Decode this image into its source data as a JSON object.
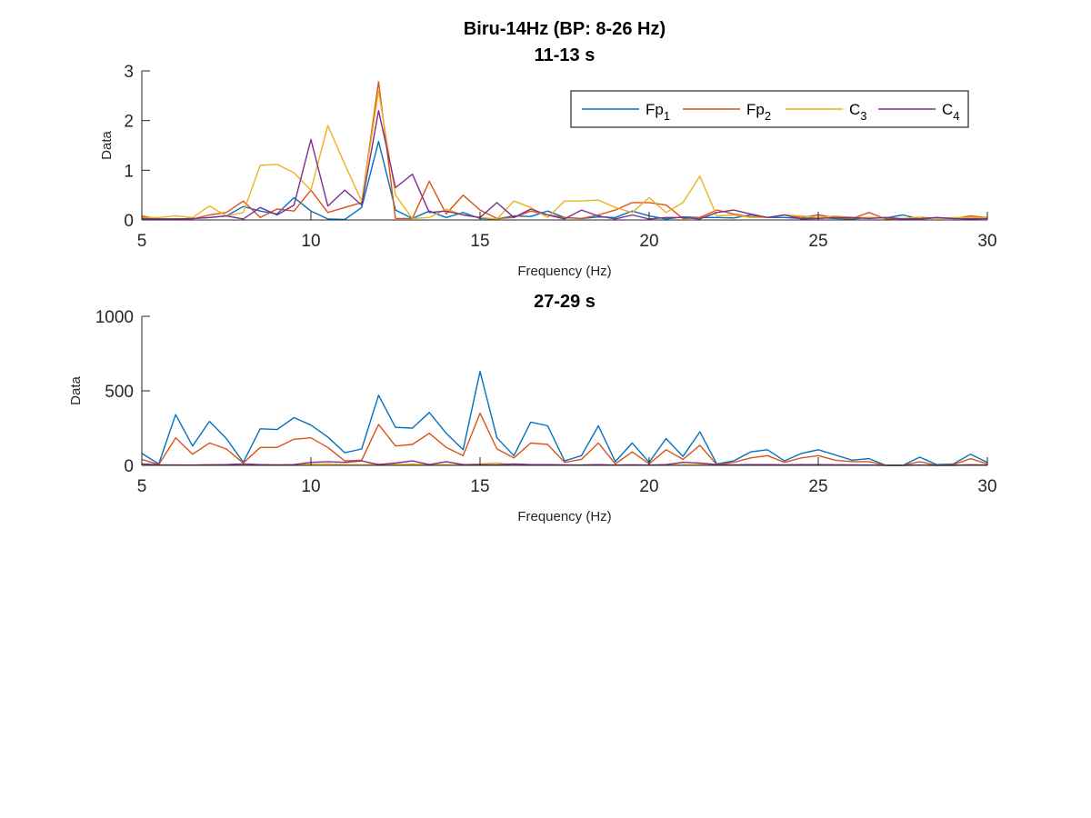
{
  "figure": {
    "suptitle": "Biru-14Hz (BP: 8-26 Hz)"
  },
  "legend": {
    "position": "top-right",
    "entries": [
      {
        "base": "Fp",
        "sub": "1",
        "color": "#0072BD"
      },
      {
        "base": "Fp",
        "sub": "2",
        "color": "#D95319"
      },
      {
        "base": "C",
        "sub": "3",
        "color": "#EDB120"
      },
      {
        "base": "C",
        "sub": "4",
        "color": "#7E2F8E"
      }
    ]
  },
  "chart_data": [
    {
      "type": "line",
      "title": "11-13 s",
      "xlabel": "Frequency (Hz)",
      "ylabel": "Data",
      "xlim": [
        5,
        30
      ],
      "ylim": [
        0,
        3
      ],
      "xticks": [
        5,
        10,
        15,
        20,
        25,
        30
      ],
      "yticks": [
        0,
        1,
        2,
        3
      ],
      "grid": false,
      "x": [
        5,
        5.5,
        6,
        6.5,
        7,
        7.5,
        8,
        8.5,
        9,
        9.5,
        10,
        10.5,
        11,
        11.5,
        12,
        12.5,
        13,
        13.5,
        14,
        14.5,
        15,
        15.5,
        16,
        16.5,
        17,
        17.5,
        18,
        18.5,
        19,
        19.5,
        20,
        20.5,
        21,
        21.5,
        22,
        22.5,
        23,
        23.5,
        24,
        24.5,
        25,
        25.5,
        26,
        26.5,
        27,
        27.5,
        28,
        28.5,
        29,
        29.5,
        30
      ],
      "series": [
        {
          "name": "Fp1",
          "color": "#0072BD",
          "values": [
            0.02,
            0.02,
            0.02,
            0.03,
            0.05,
            0.08,
            0.27,
            0.18,
            0.12,
            0.45,
            0.18,
            0.02,
            0.01,
            0.25,
            1.58,
            0.2,
            0.03,
            0.18,
            0.05,
            0.15,
            0.03,
            0.02,
            0.08,
            0.07,
            0.18,
            0.05,
            0.03,
            0.06,
            0.05,
            0.18,
            0.08,
            0.02,
            0.06,
            0.05,
            0.05,
            0.04,
            0.1,
            0.05,
            0.05,
            0.03,
            0.05,
            0.03,
            0.02,
            0.05,
            0.04,
            0.1,
            0.02,
            0.04,
            0.03,
            0.04,
            0.03
          ]
        },
        {
          "name": "Fp2",
          "color": "#D95319",
          "values": [
            0.08,
            0.02,
            0.02,
            0.02,
            0.1,
            0.15,
            0.38,
            0.05,
            0.22,
            0.18,
            0.6,
            0.15,
            0.25,
            0.35,
            2.78,
            0.03,
            0.03,
            0.78,
            0.12,
            0.5,
            0.2,
            0.03,
            0.05,
            0.18,
            0.1,
            0.05,
            0.03,
            0.1,
            0.2,
            0.35,
            0.35,
            0.3,
            0.03,
            0.05,
            0.2,
            0.12,
            0.06,
            0.05,
            0.1,
            0.05,
            0.1,
            0.05,
            0.03,
            0.15,
            0.02,
            0.03,
            0.02,
            0.05,
            0.03,
            0.08,
            0.05
          ]
        },
        {
          "name": "C3",
          "color": "#EDB120",
          "values": [
            0.05,
            0.05,
            0.08,
            0.05,
            0.28,
            0.08,
            0.15,
            1.1,
            1.12,
            0.95,
            0.6,
            1.9,
            1.12,
            0.38,
            2.6,
            0.5,
            0.03,
            0.05,
            0.22,
            0.1,
            0.05,
            0.02,
            0.38,
            0.25,
            0.05,
            0.38,
            0.38,
            0.4,
            0.25,
            0.15,
            0.45,
            0.15,
            0.35,
            0.88,
            0.08,
            0.1,
            0.05,
            0.05,
            0.1,
            0.08,
            0.05,
            0.08,
            0.05,
            0.05,
            0.05,
            0.03,
            0.06,
            0.03,
            0.05,
            0.05,
            0.05
          ]
        },
        {
          "name": "C4",
          "color": "#7E2F8E",
          "values": [
            0.03,
            0.02,
            0.02,
            0.03,
            0.05,
            0.08,
            0.02,
            0.25,
            0.1,
            0.3,
            1.62,
            0.28,
            0.6,
            0.3,
            2.2,
            0.65,
            0.92,
            0.15,
            0.18,
            0.1,
            0.05,
            0.35,
            0.05,
            0.22,
            0.1,
            0.02,
            0.2,
            0.08,
            0.02,
            0.1,
            0.02,
            0.05,
            0.05,
            0.02,
            0.15,
            0.2,
            0.12,
            0.05,
            0.1,
            0.02,
            0.03,
            0.05,
            0.05,
            0.03,
            0.05,
            0.02,
            0.03,
            0.05,
            0.03,
            0.02,
            0.03
          ]
        }
      ]
    },
    {
      "type": "line",
      "title": "27-29 s",
      "xlabel": "Frequency (Hz)",
      "ylabel": "Data",
      "xlim": [
        5,
        30
      ],
      "ylim": [
        0,
        1000
      ],
      "xticks": [
        5,
        10,
        15,
        20,
        25,
        30
      ],
      "yticks": [
        0,
        500,
        1000
      ],
      "grid": false,
      "x": [
        5,
        5.5,
        6,
        6.5,
        7,
        7.5,
        8,
        8.5,
        9,
        9.5,
        10,
        10.5,
        11,
        11.5,
        12,
        12.5,
        13,
        13.5,
        14,
        14.5,
        15,
        15.5,
        16,
        16.5,
        17,
        17.5,
        18,
        18.5,
        19,
        19.5,
        20,
        20.5,
        21,
        21.5,
        22,
        22.5,
        23,
        23.5,
        24,
        24.5,
        25,
        25.5,
        26,
        26.5,
        27,
        27.5,
        28,
        28.5,
        29,
        29.5,
        30
      ],
      "series": [
        {
          "name": "Fp1",
          "color": "#0072BD",
          "values": [
            80,
            10,
            340,
            130,
            295,
            180,
            20,
            245,
            240,
            320,
            270,
            190,
            85,
            110,
            470,
            255,
            250,
            355,
            215,
            105,
            630,
            185,
            65,
            290,
            265,
            30,
            65,
            265,
            25,
            150,
            20,
            180,
            60,
            225,
            10,
            30,
            90,
            105,
            30,
            80,
            105,
            70,
            35,
            45,
            0,
            0,
            55,
            5,
            10,
            75,
            20
          ]
        },
        {
          "name": "Fp2",
          "color": "#D95319",
          "values": [
            40,
            5,
            185,
            75,
            150,
            110,
            15,
            120,
            120,
            175,
            185,
            120,
            30,
            35,
            275,
            130,
            140,
            215,
            120,
            65,
            350,
            110,
            50,
            150,
            140,
            20,
            40,
            150,
            10,
            90,
            10,
            105,
            40,
            135,
            5,
            20,
            50,
            65,
            20,
            50,
            65,
            35,
            25,
            25,
            0,
            0,
            25,
            0,
            5,
            45,
            10
          ]
        },
        {
          "name": "C3",
          "color": "#EDB120",
          "values": [
            5,
            2,
            3,
            2,
            5,
            3,
            2,
            5,
            5,
            5,
            8,
            10,
            5,
            3,
            10,
            5,
            8,
            5,
            5,
            3,
            10,
            15,
            5,
            5,
            5,
            2,
            3,
            5,
            2,
            3,
            2,
            5,
            3,
            5,
            2,
            2,
            5,
            5,
            2,
            3,
            5,
            3,
            2,
            2,
            0,
            0,
            2,
            0,
            0,
            5,
            2
          ]
        },
        {
          "name": "C4",
          "color": "#7E2F8E",
          "values": [
            10,
            3,
            2,
            2,
            3,
            5,
            10,
            5,
            2,
            5,
            20,
            25,
            20,
            30,
            5,
            15,
            30,
            5,
            25,
            5,
            5,
            3,
            10,
            5,
            5,
            3,
            2,
            5,
            2,
            3,
            2,
            5,
            20,
            15,
            5,
            3,
            5,
            5,
            3,
            5,
            5,
            3,
            3,
            2,
            0,
            0,
            2,
            0,
            0,
            3,
            2
          ]
        }
      ]
    }
  ]
}
